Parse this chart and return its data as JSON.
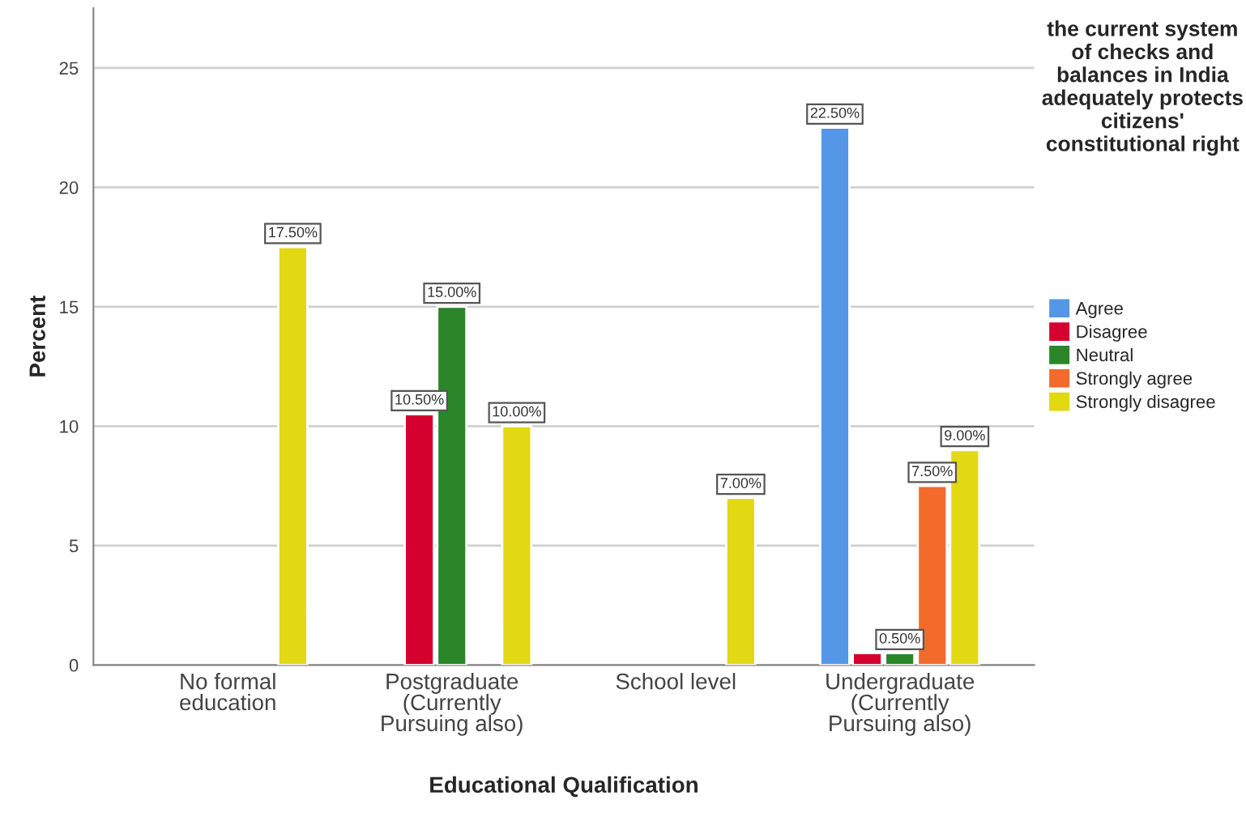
{
  "chart_data": {
    "type": "bar",
    "xlabel": "Educational Qualification",
    "ylabel": "Percent",
    "legend_title": "the current system of checks and balances in India adequately protects citizens' constitutional right",
    "categories": [
      "No formal education",
      "Postgraduate (Currently Pursuing also)",
      "School level",
      "Undergraduate (Currently Pursuing also)"
    ],
    "series": [
      {
        "name": "Agree",
        "color": "#5596e6",
        "values": [
          null,
          null,
          null,
          22.5
        ],
        "value_labels": [
          null,
          null,
          null,
          "22.50%"
        ]
      },
      {
        "name": "Disagree",
        "color": "#d6002f",
        "values": [
          null,
          10.5,
          null,
          0.5
        ],
        "value_labels": [
          null,
          "10.50%",
          null,
          null
        ]
      },
      {
        "name": "Neutral",
        "color": "#2a8629",
        "values": [
          null,
          15.0,
          null,
          0.5
        ],
        "value_labels": [
          null,
          "15.00%",
          null,
          "0.50%"
        ]
      },
      {
        "name": "Strongly agree",
        "color": "#f26b2b",
        "values": [
          null,
          null,
          null,
          7.5
        ],
        "value_labels": [
          null,
          null,
          null,
          "7.50%"
        ]
      },
      {
        "name": "Strongly disagree",
        "color": "#e2d813",
        "values": [
          17.5,
          10.0,
          7.0,
          9.0
        ],
        "value_labels": [
          "17.50%",
          "10.00%",
          "7.00%",
          "9.00%"
        ]
      }
    ],
    "ylim": [
      0,
      27.5
    ],
    "yticks": [
      0,
      5,
      10,
      15,
      20,
      25
    ],
    "grid": "y",
    "legend": "right"
  }
}
